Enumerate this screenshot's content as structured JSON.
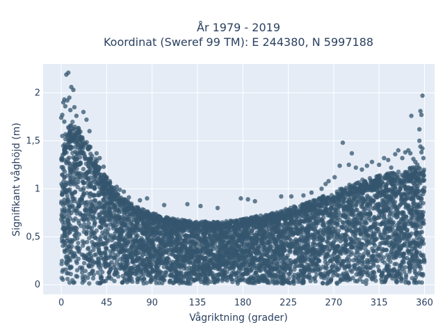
{
  "chart_data": {
    "type": "scatter",
    "title": [
      "År 1979 - 2019",
      "Koordinat (Sweref 99 TM): E 244380, N 5997188"
    ],
    "xlabel": "Vågriktning (grader)",
    "ylabel": "Signifikant våghöjd (m)",
    "xlim": [
      -18,
      370
    ],
    "ylim": [
      -0.1,
      2.3
    ],
    "xticks": [
      0,
      45,
      90,
      135,
      180,
      225,
      270,
      315,
      360
    ],
    "xtick_labels": [
      "0",
      "45",
      "90",
      "135",
      "180",
      "225",
      "270",
      "315",
      "360"
    ],
    "yticks": [
      0,
      0.5,
      1,
      1.5,
      2
    ],
    "ytick_labels": [
      "0",
      "0,5",
      "1",
      "1,5",
      "2"
    ],
    "grid": true,
    "legend": "none",
    "colors": {
      "marker": "#34566e",
      "plot_bg": "#e5ecf6",
      "grid": "#ffffff",
      "text": "#2a3f5f"
    },
    "dense_band": {
      "comment_free": true,
      "x_range": [
        0,
        360
      ],
      "y_min": 0.01,
      "upper_envelope": [
        [
          0,
          1.3
        ],
        [
          5,
          1.55
        ],
        [
          10,
          1.65
        ],
        [
          15,
          1.6
        ],
        [
          20,
          1.55
        ],
        [
          25,
          1.5
        ],
        [
          30,
          1.35
        ],
        [
          40,
          1.15
        ],
        [
          50,
          1.0
        ],
        [
          60,
          0.88
        ],
        [
          75,
          0.78
        ],
        [
          90,
          0.72
        ],
        [
          105,
          0.68
        ],
        [
          120,
          0.65
        ],
        [
          135,
          0.64
        ],
        [
          150,
          0.63
        ],
        [
          165,
          0.64
        ],
        [
          180,
          0.66
        ],
        [
          195,
          0.69
        ],
        [
          210,
          0.72
        ],
        [
          225,
          0.77
        ],
        [
          240,
          0.82
        ],
        [
          255,
          0.87
        ],
        [
          270,
          0.93
        ],
        [
          285,
          1.0
        ],
        [
          300,
          1.06
        ],
        [
          315,
          1.1
        ],
        [
          330,
          1.13
        ],
        [
          345,
          1.17
        ],
        [
          355,
          1.2
        ],
        [
          360,
          1.15
        ]
      ]
    },
    "outliers": [
      [
        5,
        2.19
      ],
      [
        7,
        2.21
      ],
      [
        10,
        2.06
      ],
      [
        12,
        2.03
      ],
      [
        8,
        1.95
      ],
      [
        3,
        1.93
      ],
      [
        6,
        1.92
      ],
      [
        2,
        1.9
      ],
      [
        4,
        1.86
      ],
      [
        13,
        1.85
      ],
      [
        9,
        1.82
      ],
      [
        22,
        1.8
      ],
      [
        1,
        1.77
      ],
      [
        15,
        1.76
      ],
      [
        0,
        1.74
      ],
      [
        25,
        1.72
      ],
      [
        3,
        1.7
      ],
      [
        28,
        1.6
      ],
      [
        1,
        1.55
      ],
      [
        35,
        1.37
      ],
      [
        38,
        1.32
      ],
      [
        42,
        1.23
      ],
      [
        45,
        1.12
      ],
      [
        48,
        1.08
      ],
      [
        55,
        1.02
      ],
      [
        58,
        0.99
      ],
      [
        62,
        0.97
      ],
      [
        67,
        0.91
      ],
      [
        78,
        0.88
      ],
      [
        85,
        0.9
      ],
      [
        102,
        0.83
      ],
      [
        125,
        0.84
      ],
      [
        138,
        0.82
      ],
      [
        155,
        0.8
      ],
      [
        178,
        0.9
      ],
      [
        185,
        0.89
      ],
      [
        192,
        0.87
      ],
      [
        218,
        0.92
      ],
      [
        228,
        0.92
      ],
      [
        240,
        0.93
      ],
      [
        248,
        0.96
      ],
      [
        258,
        1.0
      ],
      [
        262,
        1.05
      ],
      [
        265,
        1.08
      ],
      [
        271,
        1.12
      ],
      [
        276,
        1.24
      ],
      [
        279,
        1.48
      ],
      [
        285,
        1.25
      ],
      [
        288,
        1.37
      ],
      [
        292,
        1.22
      ],
      [
        298,
        1.2
      ],
      [
        303,
        1.24
      ],
      [
        308,
        1.28
      ],
      [
        315,
        1.25
      ],
      [
        320,
        1.32
      ],
      [
        324,
        1.3
      ],
      [
        327,
        1.22
      ],
      [
        331,
        1.36
      ],
      [
        334,
        1.4
      ],
      [
        338,
        1.32
      ],
      [
        341,
        1.38
      ],
      [
        344,
        1.4
      ],
      [
        346,
        1.37
      ],
      [
        349,
        1.31
      ],
      [
        351,
        1.28
      ],
      [
        347,
        1.76
      ],
      [
        355,
        1.62
      ],
      [
        356,
        1.81
      ],
      [
        357,
        1.77
      ],
      [
        358,
        1.97
      ],
      [
        355,
        1.5
      ],
      [
        356,
        1.44
      ],
      [
        358,
        1.42
      ],
      [
        357,
        1.38
      ],
      [
        359,
        1.32
      ],
      [
        353,
        1.25
      ],
      [
        359,
        1.18
      ]
    ]
  }
}
